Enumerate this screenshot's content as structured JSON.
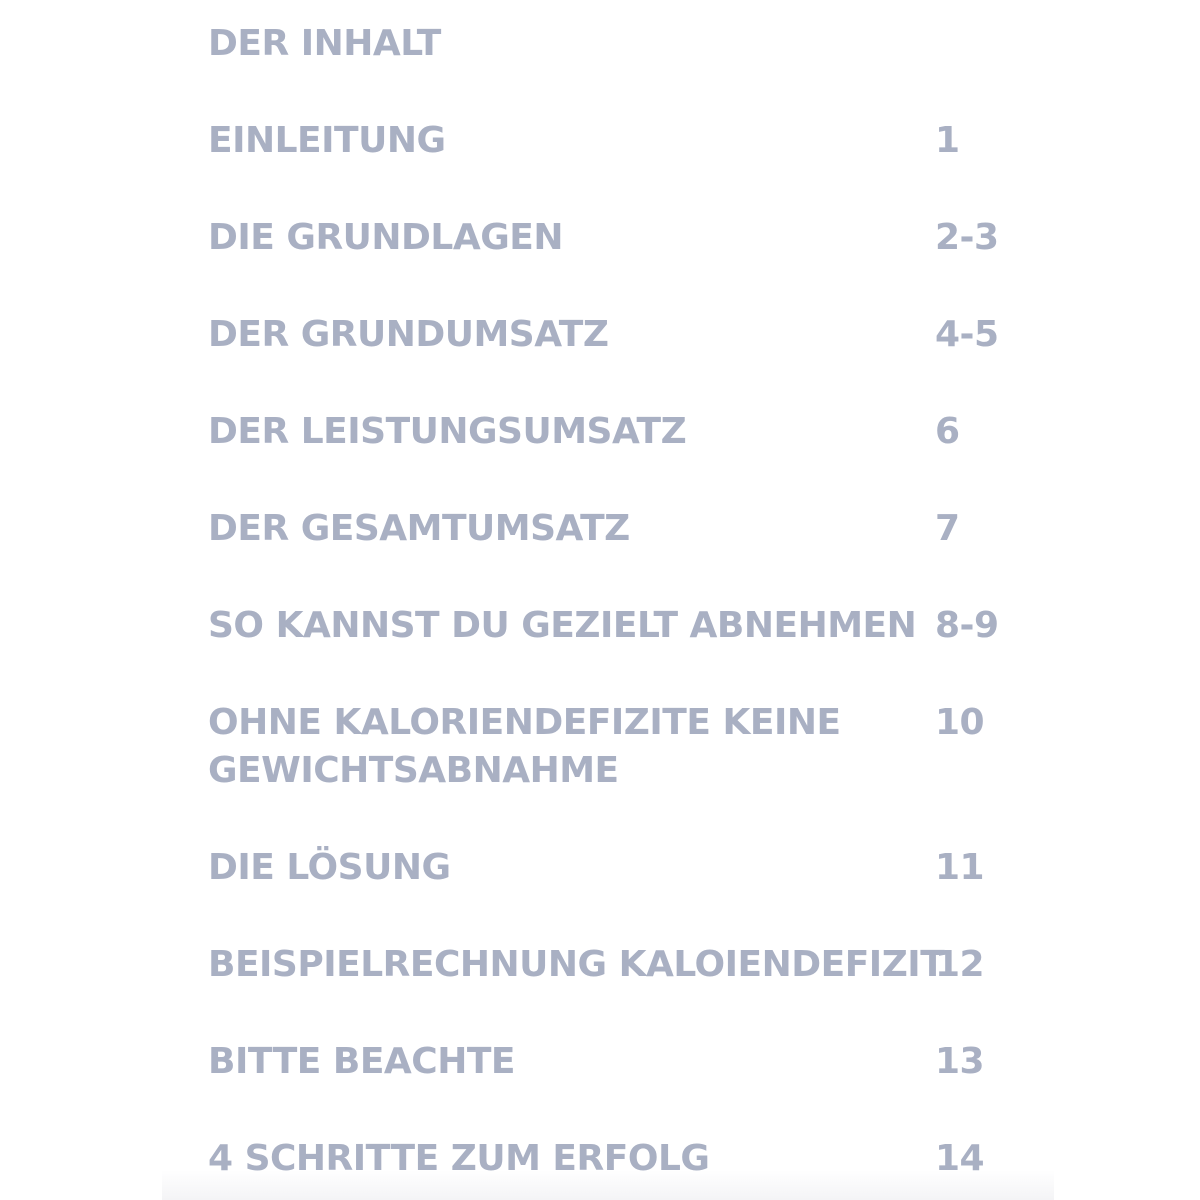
{
  "toc": {
    "title": "DER INHALT",
    "entries": [
      {
        "label": "EINLEITUNG",
        "page": "1"
      },
      {
        "label": "DIE GRUNDLAGEN",
        "page": "2-3"
      },
      {
        "label": "DER GRUNDUMSATZ",
        "page": "4-5"
      },
      {
        "label": "DER LEISTUNGSUMSATZ",
        "page": "6"
      },
      {
        "label": "DER GESAMTUMSATZ",
        "page": "7"
      },
      {
        "label": "SO KANNST DU GEZIELT ABNEHMEN",
        "page": "8-9"
      },
      {
        "label_line1": "OHNE KALORIENDEFIZITE KEINE",
        "label_line2": "GEWICHTSABNAHME",
        "page": "10"
      },
      {
        "label": "DIE LÖSUNG",
        "page": "11"
      },
      {
        "label": "BEISPIELRECHNUNG KALOIENDEFIZIT",
        "page": "12"
      },
      {
        "label": "BITTE BEACHTE",
        "page": "13"
      },
      {
        "label": "4 SCHRITTE ZUM ERFOLG",
        "page": "14"
      }
    ]
  },
  "colors": {
    "text": "#a9b0c3",
    "background": "#ffffff"
  }
}
